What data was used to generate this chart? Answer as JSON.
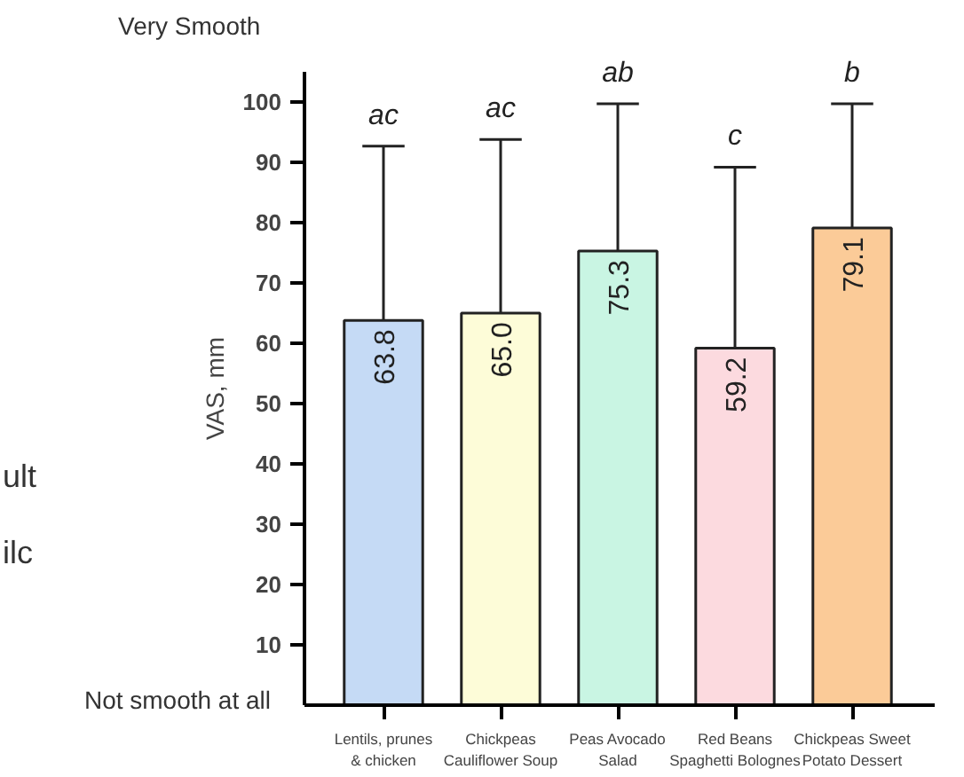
{
  "chart_data": {
    "type": "bar",
    "ylabel": "VAS, mm",
    "categories": [
      "Lentils, prunes\n& chicken",
      "Chickpeas\nCauliflower Soup",
      "Peas Avocado\nSalad",
      "Red Beans\nSpaghetti Bolognes",
      "Chickpeas Sweet\nPotato Dessert"
    ],
    "values": [
      63.8,
      65.0,
      75.3,
      59.2,
      79.1
    ],
    "colors": [
      "#c5daf5",
      "#fdfcd8",
      "#c9f5e3",
      "#fcdadf",
      "#fbcb98"
    ],
    "errors": [
      [
        63.8,
        92.7
      ],
      [
        65.0,
        93.8
      ],
      [
        75.3,
        99.7
      ],
      [
        59.2,
        89.2
      ],
      [
        79.1,
        99.7
      ]
    ],
    "value_labels": [
      "63.8",
      "65.0",
      "75.3",
      "59.2",
      "79.1"
    ],
    "ylim": [
      0,
      105
    ],
    "yticks": [
      10,
      20,
      30,
      40,
      50,
      60,
      70,
      80,
      90,
      100
    ],
    "grid": false,
    "annotations": [
      "Very Smooth",
      "Not smooth at all",
      "ult",
      "ilc",
      {
        "text": "ac",
        "x": "Lentils, prunes\n& chicken",
        "y": 92.7
      },
      {
        "text": "ac",
        "x": "Chickpeas\nCauliflower Soup",
        "y": 93.8
      },
      {
        "text": "ab",
        "x": "Peas Avocado\nSalad",
        "y": 99.7
      },
      {
        "text": "c",
        "x": "Red Beans\nSpaghetti Bolognes",
        "y": 89.2
      },
      {
        "text": "b",
        "x": "Chickpeas Sweet\nPotato Dessert",
        "y": 99.7
      }
    ]
  }
}
